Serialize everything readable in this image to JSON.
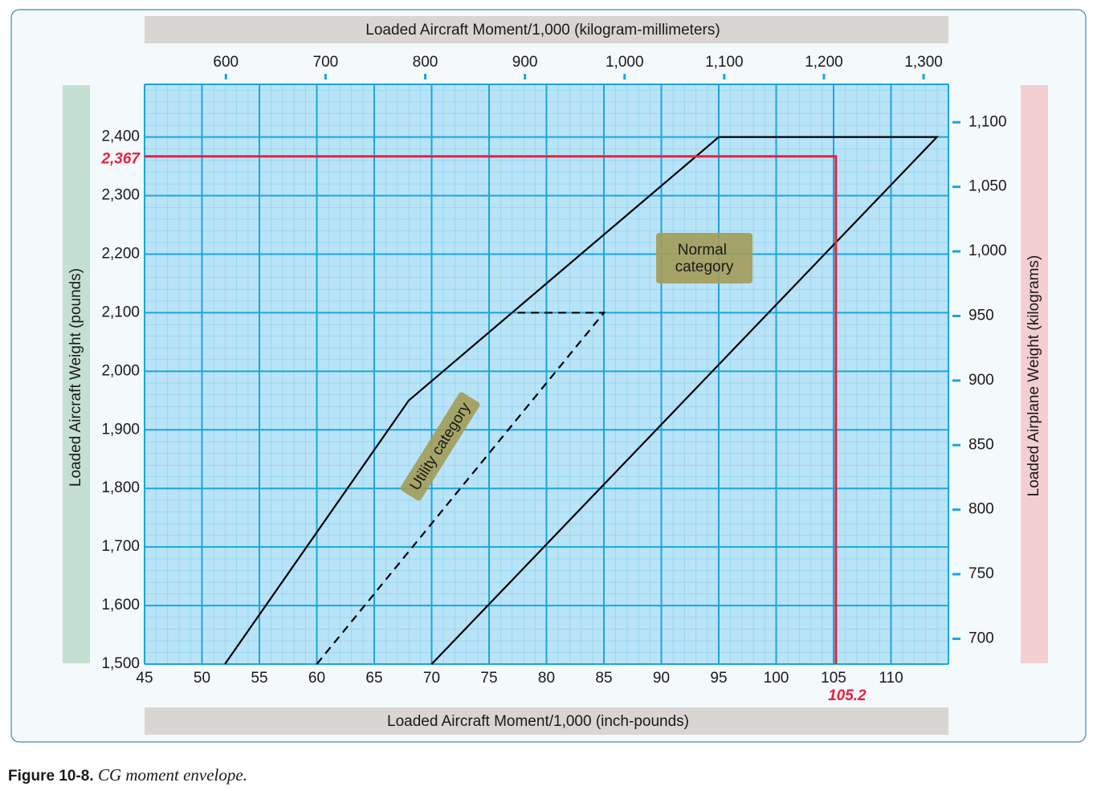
{
  "chart_data": {
    "type": "line",
    "title": "Loaded Aircraft Moment/1,000 (kilogram-millimeters)",
    "xlabel": "Loaded Aircraft Moment/1,000 (inch-pounds)",
    "ylabel": "Loaded  Aircraft Weight (pounds)",
    "y2label": "Loaded Airplane Weight (kilograms)",
    "xlim": [
      45,
      115
    ],
    "xticks": [
      45,
      50,
      55,
      60,
      65,
      70,
      75,
      80,
      85,
      90,
      95,
      100,
      105,
      110
    ],
    "ylim": [
      1500,
      2490
    ],
    "yticks": [
      {
        "value": 1500,
        "label": "1,500"
      },
      {
        "value": 1600,
        "label": "1,600"
      },
      {
        "value": 1700,
        "label": "1,700"
      },
      {
        "value": 1800,
        "label": "1,800"
      },
      {
        "value": 1900,
        "label": "1,900"
      },
      {
        "value": 2000,
        "label": "2,000"
      },
      {
        "value": 2100,
        "label": "2,100"
      },
      {
        "value": 2200,
        "label": "2,200"
      },
      {
        "value": 2300,
        "label": "2,300"
      },
      {
        "value": 2400,
        "label": "2,400"
      }
    ],
    "x2lim": [
      518.4,
      1324.9
    ],
    "x2ticks": [
      600,
      700,
      800,
      900,
      {
        "value": 1000,
        "label": "1,000"
      },
      {
        "value": 1100,
        "label": "1,100"
      },
      {
        "value": 1200,
        "label": "1,200"
      },
      {
        "value": 1300,
        "label": "1,300"
      }
    ],
    "y2lim": [
      680.4,
      1129.4
    ],
    "y2ticks": [
      700,
      750,
      800,
      850,
      900,
      950,
      {
        "value": 1000,
        "label": "1,000"
      },
      {
        "value": 1050,
        "label": "1,050"
      },
      {
        "value": 1100,
        "label": "1,100"
      }
    ],
    "grid": true,
    "series": [
      {
        "name": "Normal category",
        "color": "#000000",
        "dash": false,
        "x": [
          52,
          68,
          95,
          114,
          70
        ],
        "values": [
          1500,
          1950,
          2400,
          2400,
          1500
        ]
      },
      {
        "name": "Utility category",
        "color": "#000000",
        "dash": true,
        "x": [
          60,
          85,
          77.5
        ],
        "values": [
          1500,
          2100,
          2100
        ]
      }
    ],
    "reference": {
      "color": "#e8213f",
      "x": 105.2,
      "y": {
        "value": 2367,
        "label": "2,367"
      }
    }
  },
  "caption": {
    "label": "Figure 10-8.",
    "text": "CG moment envelope."
  }
}
